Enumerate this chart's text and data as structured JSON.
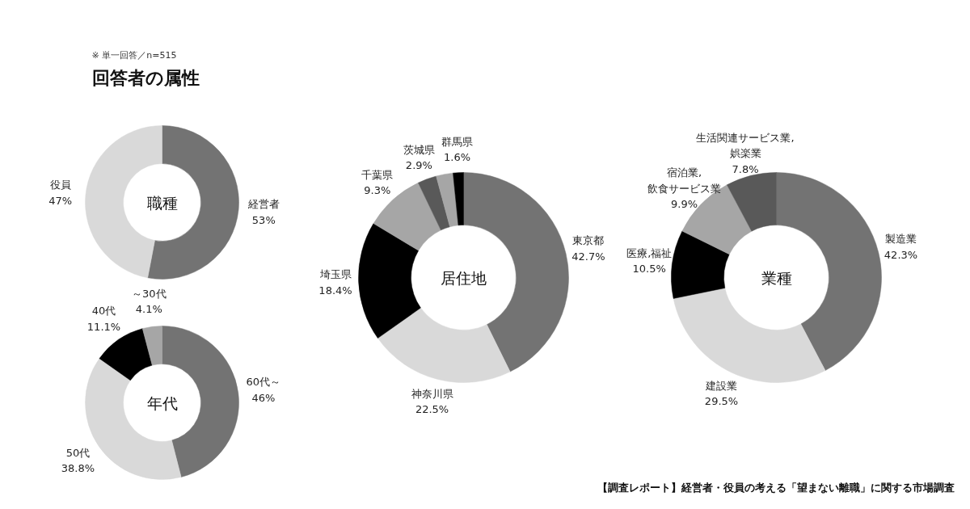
{
  "chart_data": [
    {
      "type": "donut",
      "title": "職種",
      "annotations": [
        "※ 単一回答／n=515",
        "回答者の属性"
      ],
      "categories": [
        "経営者",
        "役員"
      ],
      "values": [
        53,
        47
      ],
      "value_labels": [
        "53%",
        "47%"
      ],
      "colors": [
        "#737373",
        "#d9d9d9"
      ]
    },
    {
      "type": "donut",
      "title": "年代",
      "categories": [
        "60代～",
        "50代",
        "40代",
        "～30代"
      ],
      "values": [
        46,
        38.8,
        11.1,
        4.1
      ],
      "value_labels": [
        "46%",
        "38.8%",
        "11.1%",
        "4.1%"
      ],
      "colors": [
        "#737373",
        "#d9d9d9",
        "#000000",
        "#a6a6a6"
      ]
    },
    {
      "type": "donut",
      "title": "居住地",
      "categories": [
        "東京都",
        "神奈川県",
        "埼玉県",
        "千葉県",
        "茨城県",
        null,
        "群馬県"
      ],
      "values": [
        42.7,
        22.5,
        18.4,
        9.3,
        2.9,
        2.6,
        1.6
      ],
      "value_labels": [
        "42.7%",
        "22.5%",
        "18.4%",
        "9.3%",
        "2.9%",
        null,
        "1.6%"
      ],
      "colors": [
        "#737373",
        "#d9d9d9",
        "#000000",
        "#a6a6a6",
        "#595959",
        "#a6a6a6",
        "#000000"
      ]
    },
    {
      "type": "donut",
      "title": "業種",
      "annotations": [
        "【調査レポート】経営者・役員の考える「望まない離職」に関する市場調査"
      ],
      "categories": [
        "製造業",
        "建設業",
        "医療,福祉",
        "宿泊業,\n飲食サービス業",
        "生活関連サービス業,\n娯楽業"
      ],
      "values": [
        42.3,
        29.5,
        10.5,
        9.9,
        7.8
      ],
      "value_labels": [
        "42.3%",
        "29.5%",
        "10.5%",
        "9.9%",
        "7.8%"
      ],
      "colors": [
        "#737373",
        "#d9d9d9",
        "#000000",
        "#a6a6a6",
        "#595959"
      ]
    }
  ]
}
